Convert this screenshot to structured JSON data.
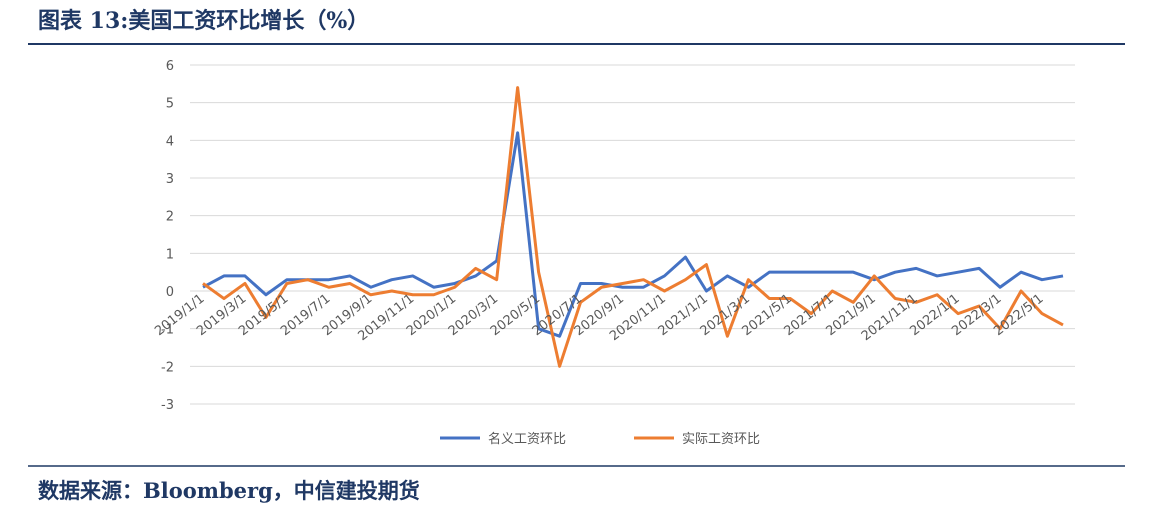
{
  "header": {
    "title": "图表 13:美国工资环比增长（%）"
  },
  "chart_data": {
    "type": "line",
    "categories": [
      "2019/1/1",
      null,
      "2019/3/1",
      null,
      "2019/5/1",
      null,
      "2019/7/1",
      null,
      "2019/9/1",
      null,
      "2019/11/1",
      null,
      "2020/1/1",
      null,
      "2020/3/1",
      null,
      "2020/5/1",
      null,
      "2020/7/1",
      null,
      "2020/9/1",
      null,
      "2020/11/1",
      null,
      "2021/1/1",
      null,
      "2021/3/1",
      null,
      "2021/5/1",
      null,
      "2021/7/1",
      null,
      "2021/9/1",
      null,
      "2021/11/1",
      null,
      "2022/1/1",
      null,
      "2022/3/1",
      null,
      "2022/5/1",
      null
    ],
    "series": [
      {
        "name": "名义工资环比",
        "color": "#4472c4",
        "values": [
          0.1,
          0.4,
          0.4,
          -0.1,
          0.3,
          0.3,
          0.3,
          0.4,
          0.1,
          0.3,
          0.4,
          0.1,
          0.2,
          0.4,
          0.8,
          4.2,
          -1.0,
          -1.2,
          0.2,
          0.2,
          0.1,
          0.1,
          0.4,
          0.9,
          0.0,
          0.4,
          0.1,
          0.5,
          0.5,
          0.5,
          0.5,
          0.5,
          0.3,
          0.5,
          0.6,
          0.4,
          0.5,
          0.6,
          0.1,
          0.5,
          0.3,
          0.4
        ]
      },
      {
        "name": "实际工资环比",
        "color": "#ed7d31",
        "values": [
          0.2,
          -0.2,
          0.2,
          -0.7,
          0.2,
          0.3,
          0.1,
          0.2,
          -0.1,
          0.0,
          -0.1,
          -0.1,
          0.1,
          0.6,
          0.3,
          5.4,
          0.5,
          -2.0,
          -0.3,
          0.1,
          0.2,
          0.3,
          0.0,
          0.3,
          0.7,
          -1.2,
          0.3,
          -0.2,
          -0.2,
          -0.6,
          0.0,
          -0.3,
          0.4,
          -0.2,
          -0.3,
          -0.1,
          -0.6,
          -0.4,
          -1.0,
          0.0,
          -0.6,
          -0.9
        ]
      }
    ],
    "ylim": [
      -3,
      6
    ],
    "yticks": [
      -3,
      -2,
      -1,
      0,
      1,
      2,
      3,
      4,
      5,
      6
    ],
    "grid": true,
    "legend": "bottom"
  },
  "footer": {
    "source": "数据来源：Bloomberg，中信建投期货"
  }
}
